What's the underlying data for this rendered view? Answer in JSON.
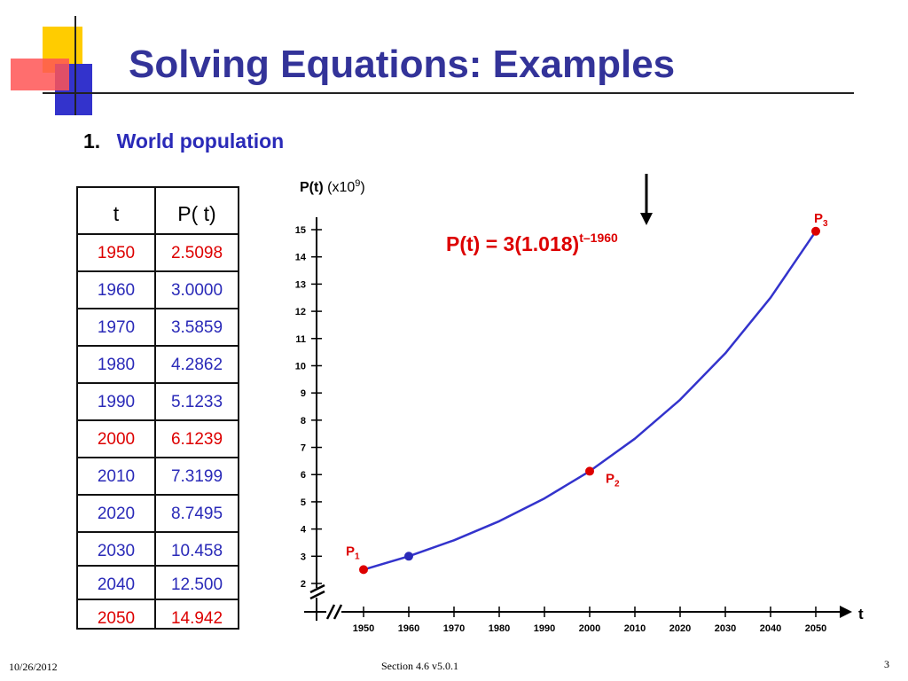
{
  "slide": {
    "title": "Solving Equations: Examples",
    "subtitle_number": "1.",
    "subtitle_label": "World population"
  },
  "colors": {
    "title": "#333399",
    "subtitle": "#2a2ab8",
    "blue_data": "#2a2ab8",
    "red_data": "#dd0000",
    "curve": "#3333cc"
  },
  "table": {
    "headers": [
      "t",
      "P( t)"
    ],
    "rows": [
      {
        "t": "1950",
        "p": "2.5098",
        "color": "red"
      },
      {
        "t": "1960",
        "p": "3.0000",
        "color": "blue"
      },
      {
        "t": "1970",
        "p": "3.5859",
        "color": "blue"
      },
      {
        "t": "1980",
        "p": "4.2862",
        "color": "blue"
      },
      {
        "t": "1990",
        "p": "5.1233",
        "color": "blue"
      },
      {
        "t": "2000",
        "p": "6.1239",
        "color": "red"
      },
      {
        "t": "2010",
        "p": "7.3199",
        "color": "blue"
      },
      {
        "t": "2020",
        "p": "8.7495",
        "color": "blue"
      },
      {
        "t": "2030",
        "p": "10.458",
        "color": "blue"
      },
      {
        "t": "2040",
        "p": "12.500",
        "color": "blue"
      },
      {
        "t": "2050",
        "p": "14.942",
        "color": "red"
      }
    ]
  },
  "chart_data": {
    "type": "line",
    "ylabel_bold": "P(t)",
    "ylabel_unit": "(x10",
    "ylabel_exp": "9",
    "ylabel_close": ")",
    "xlabel": "t",
    "formula_main": "P(t) = 3(1.018)",
    "formula_exp": "t–1960",
    "x_ticks": [
      "1950",
      "1960",
      "1970",
      "1980",
      "1990",
      "2000",
      "2010",
      "2020",
      "2030",
      "2040",
      "2050"
    ],
    "y_ticks": [
      "2",
      "3",
      "4",
      "5",
      "6",
      "7",
      "8",
      "9",
      "10",
      "11",
      "12",
      "13",
      "14",
      "15"
    ],
    "xlim": [
      1950,
      2050
    ],
    "ylim": [
      2,
      15
    ],
    "x_axis_break": true,
    "y_axis_break": true,
    "grid": false,
    "series": [
      {
        "x": [
          1950,
          1960,
          1970,
          1980,
          1990,
          2000,
          2010,
          2020,
          2030,
          2040,
          2050
        ],
        "y": [
          2.5098,
          3.0,
          3.5859,
          4.2862,
          5.1233,
          6.1239,
          7.3199,
          8.7495,
          10.458,
          12.5,
          14.942
        ]
      }
    ],
    "points": [
      {
        "x": 1950,
        "y": 2.5098,
        "label": "P",
        "sub": "1",
        "color": "red"
      },
      {
        "x": 1960,
        "y": 3.0,
        "label": "",
        "sub": "",
        "color": "blue"
      },
      {
        "x": 2000,
        "y": 6.1239,
        "label": "P",
        "sub": "2",
        "color": "red"
      },
      {
        "x": 2050,
        "y": 14.942,
        "label": "P",
        "sub": "3",
        "color": "red"
      }
    ]
  },
  "footer": {
    "date": "10/26/2012",
    "section": "Section 4.6  v5.0.1",
    "page": "3"
  }
}
